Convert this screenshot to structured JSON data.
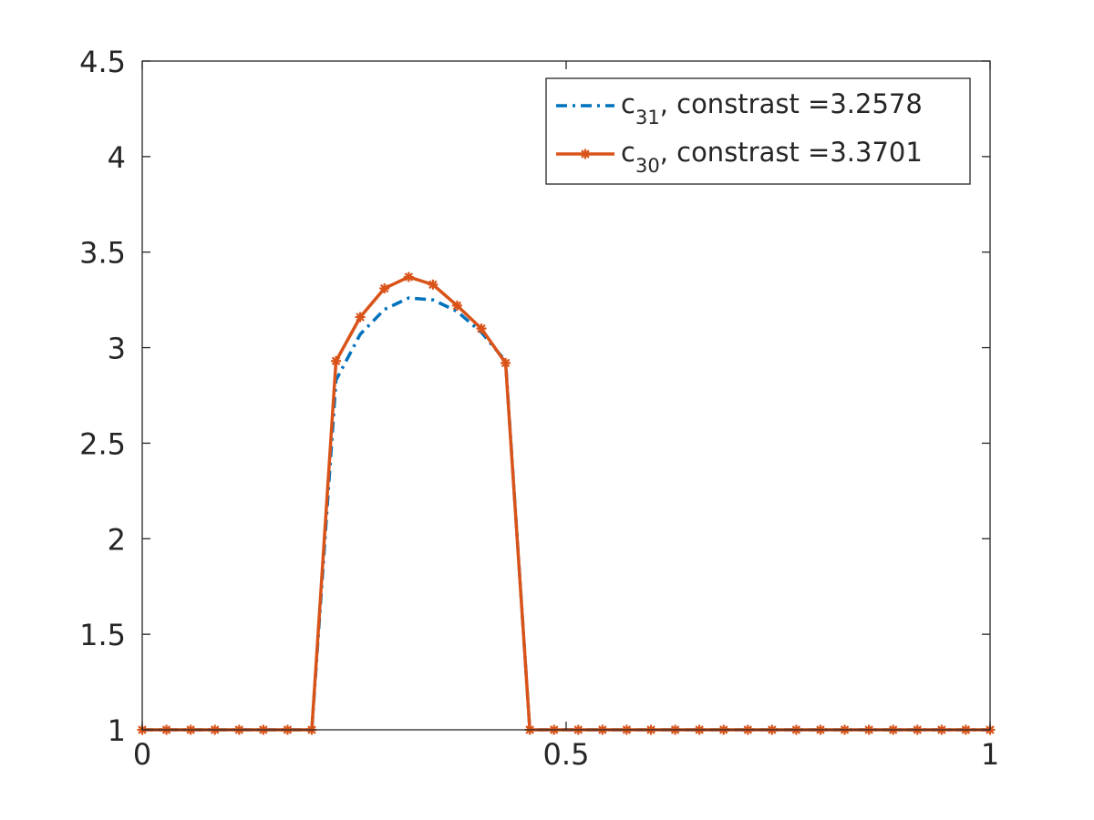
{
  "chart_data": {
    "type": "line",
    "xlim": [
      0,
      1
    ],
    "ylim": [
      1,
      4.5
    ],
    "xticks": [
      0,
      0.5,
      1
    ],
    "xtick_labels": [
      "0",
      "0.5",
      "1"
    ],
    "yticks": [
      1,
      1.5,
      2,
      2.5,
      3,
      3.5,
      4,
      4.5
    ],
    "ytick_labels": [
      "1",
      "1.5",
      "2",
      "2.5",
      "3",
      "3.5",
      "4",
      "4.5"
    ],
    "grid": false,
    "legend_position": "top-right",
    "series": [
      {
        "name": "c_31",
        "legend_base": "c",
        "legend_sub": "31",
        "legend_suffix": ", constrast =3.2578",
        "color": "#0072BD",
        "style": "dash-dot",
        "marker": "none",
        "x": [
          0,
          0.02857,
          0.05714,
          0.08571,
          0.11429,
          0.14286,
          0.17143,
          0.2,
          0.22857,
          0.25714,
          0.28571,
          0.31429,
          0.34286,
          0.37143,
          0.4,
          0.42857,
          0.45714,
          0.48571,
          0.51429,
          0.54286,
          0.57143,
          0.6,
          0.62857,
          0.65714,
          0.68571,
          0.71429,
          0.74286,
          0.77143,
          0.8,
          0.82857,
          0.85714,
          0.88571,
          0.91429,
          0.94286,
          0.97143,
          1
        ],
        "y": [
          1,
          1,
          1,
          1,
          1,
          1,
          1,
          1,
          2.83,
          3.07,
          3.2,
          3.26,
          3.25,
          3.19,
          3.08,
          2.93,
          1,
          1,
          1,
          1,
          1,
          1,
          1,
          1,
          1,
          1,
          1,
          1,
          1,
          1,
          1,
          1,
          1,
          1,
          1,
          1
        ]
      },
      {
        "name": "c_30",
        "legend_base": "c",
        "legend_sub": "30",
        "legend_suffix": ", constrast =3.3701",
        "color": "#D95319",
        "style": "solid",
        "marker": "star",
        "x": [
          0,
          0.02857,
          0.05714,
          0.08571,
          0.11429,
          0.14286,
          0.17143,
          0.2,
          0.22857,
          0.25714,
          0.28571,
          0.31429,
          0.34286,
          0.37143,
          0.4,
          0.42857,
          0.45714,
          0.48571,
          0.51429,
          0.54286,
          0.57143,
          0.6,
          0.62857,
          0.65714,
          0.68571,
          0.71429,
          0.74286,
          0.77143,
          0.8,
          0.82857,
          0.85714,
          0.88571,
          0.91429,
          0.94286,
          0.97143,
          1
        ],
        "y": [
          1,
          1,
          1,
          1,
          1,
          1,
          1,
          1,
          2.93,
          3.16,
          3.31,
          3.37,
          3.33,
          3.22,
          3.1,
          2.92,
          1,
          1,
          1,
          1,
          1,
          1,
          1,
          1,
          1,
          1,
          1,
          1,
          1,
          1,
          1,
          1,
          1,
          1,
          1,
          1
        ]
      }
    ]
  }
}
